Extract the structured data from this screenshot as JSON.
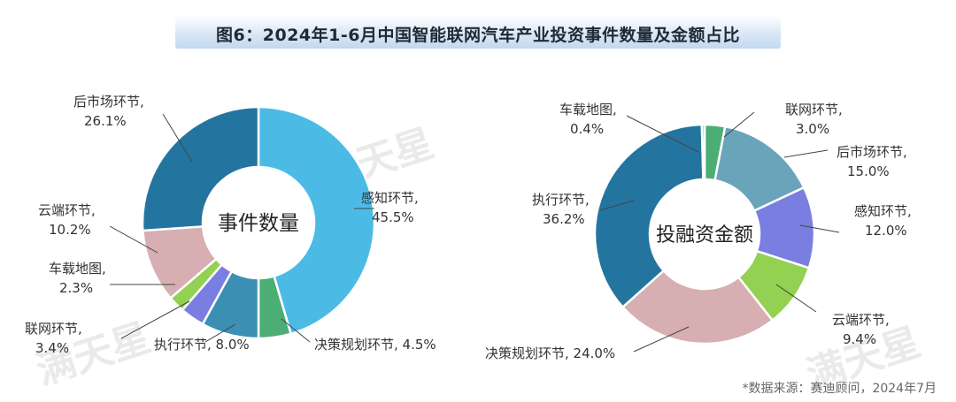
{
  "title": "图6：2024年1-6月中国智能联网汽车产业投资事件数量及金额占比",
  "source": "*数据来源：赛迪顾问，2024年7月",
  "watermark": "满天星",
  "chart_data": [
    {
      "type": "pie",
      "center_label": "事件数量",
      "slices": [
        {
          "name": "感知环节",
          "value": 45.5,
          "label": "45.5%",
          "color": "#4bbbe6"
        },
        {
          "name": "决策规划环节",
          "value": 4.5,
          "label": "4.5%",
          "color": "#4cae74"
        },
        {
          "name": "执行环节",
          "value": 8.0,
          "label": "8.0%",
          "color": "#3b8fb3"
        },
        {
          "name": "联网环节",
          "value": 3.4,
          "label": "3.4%",
          "color": "#7a7ee0"
        },
        {
          "name": "车载地图",
          "value": 2.3,
          "label": "2.3%",
          "color": "#93d152"
        },
        {
          "name": "云端环节",
          "value": 10.2,
          "label": "10.2%",
          "color": "#d7aeb2"
        },
        {
          "name": "后市场环节",
          "value": 26.1,
          "label": "26.1%",
          "color": "#23759f"
        }
      ]
    },
    {
      "type": "pie",
      "center_label": "投融资金额",
      "slices": [
        {
          "name": "联网环节",
          "value": 3.0,
          "label": "3.0%",
          "color": "#4cae74"
        },
        {
          "name": "后市场环节",
          "value": 15.0,
          "label": "15.0%",
          "color": "#6aa4ba"
        },
        {
          "name": "感知环节",
          "value": 12.0,
          "label": "12.0%",
          "color": "#7a7ee0"
        },
        {
          "name": "云端环节",
          "value": 9.4,
          "label": "9.4%",
          "color": "#93d152"
        },
        {
          "name": "决策规划环节",
          "value": 24.0,
          "label": "24.0%",
          "color": "#d7aeb2"
        },
        {
          "name": "执行环节",
          "value": 36.2,
          "label": "36.2%",
          "color": "#23759f"
        },
        {
          "name": "车载地图",
          "value": 0.4,
          "label": "0.4%",
          "color": "#4bbbe6"
        }
      ]
    }
  ]
}
